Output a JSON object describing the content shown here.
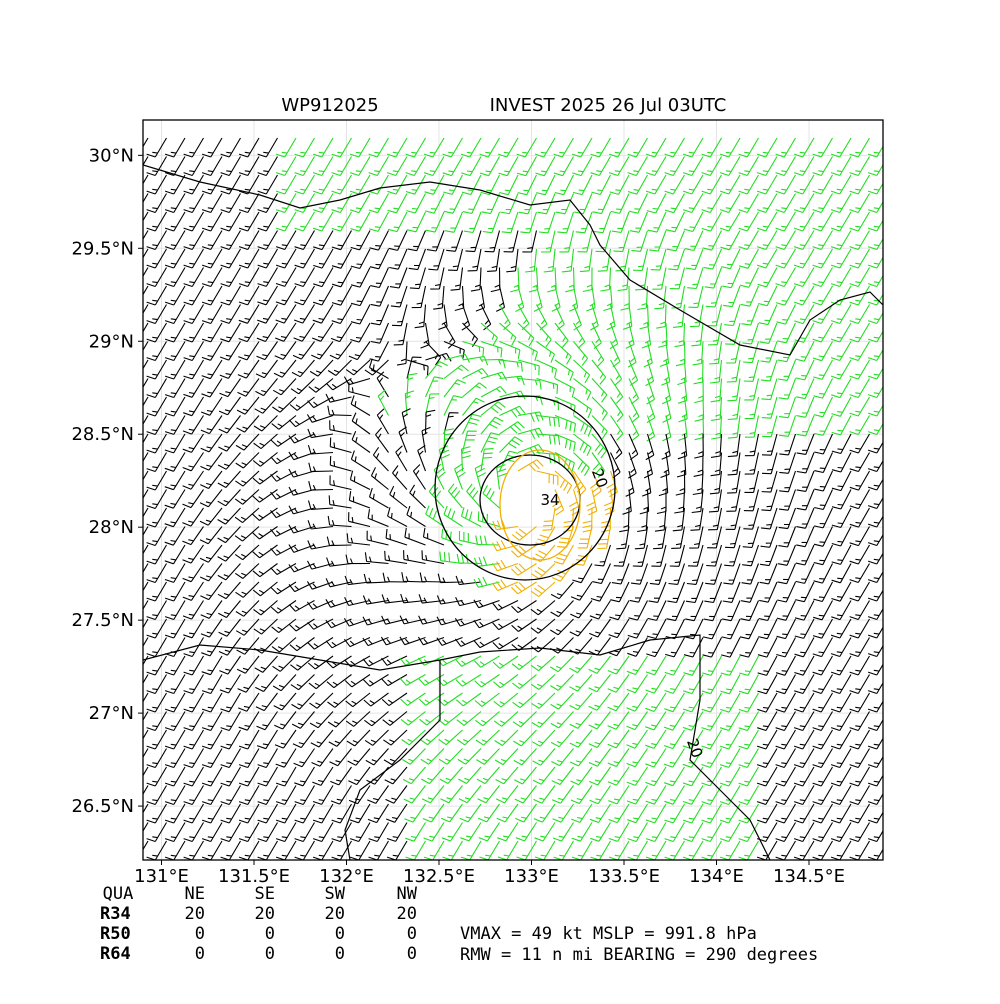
{
  "chart_data": {
    "type": "map",
    "title_left": "WP912025",
    "title_right": "INVEST 2025 26 Jul 03UTC",
    "xlim": [
      130.9,
      134.9
    ],
    "ylim": [
      26.21,
      30.19
    ],
    "xticks": [
      {
        "value": 131,
        "label": "131°E"
      },
      {
        "value": 131.5,
        "label": "131.5°E"
      },
      {
        "value": 132,
        "label": "132°E"
      },
      {
        "value": 132.5,
        "label": "132.5°E"
      },
      {
        "value": 133,
        "label": "133°E"
      },
      {
        "value": 133.5,
        "label": "133.5°E"
      },
      {
        "value": 134,
        "label": "134°E"
      },
      {
        "value": 134.5,
        "label": "134.5°E"
      }
    ],
    "yticks": [
      {
        "value": 26.5,
        "label": "26.5°N"
      },
      {
        "value": 27,
        "label": "27°N"
      },
      {
        "value": 27.5,
        "label": "27.5°N"
      },
      {
        "value": 28,
        "label": "28°N"
      },
      {
        "value": 28.5,
        "label": "28.5°N"
      },
      {
        "value": 29,
        "label": "29°N"
      },
      {
        "value": 29.5,
        "label": "29.5°N"
      },
      {
        "value": 30,
        "label": "30°N"
      }
    ],
    "grid": true,
    "contour_labels": [
      "20",
      "34",
      "20"
    ],
    "table": {
      "header": [
        "QUA",
        "NE",
        "SE",
        "SW",
        "NW"
      ],
      "rows": [
        [
          "R34",
          "20",
          "20",
          "20",
          "20"
        ],
        [
          "R50",
          "0",
          "0",
          "0",
          "0"
        ],
        [
          "R64",
          "0",
          "0",
          "0",
          "0"
        ]
      ]
    },
    "info": [
      "VMAX =  49 kt MSLP = 991.8 hPa",
      "RMW =  11 n mi BEARING = 290 degrees"
    ]
  }
}
